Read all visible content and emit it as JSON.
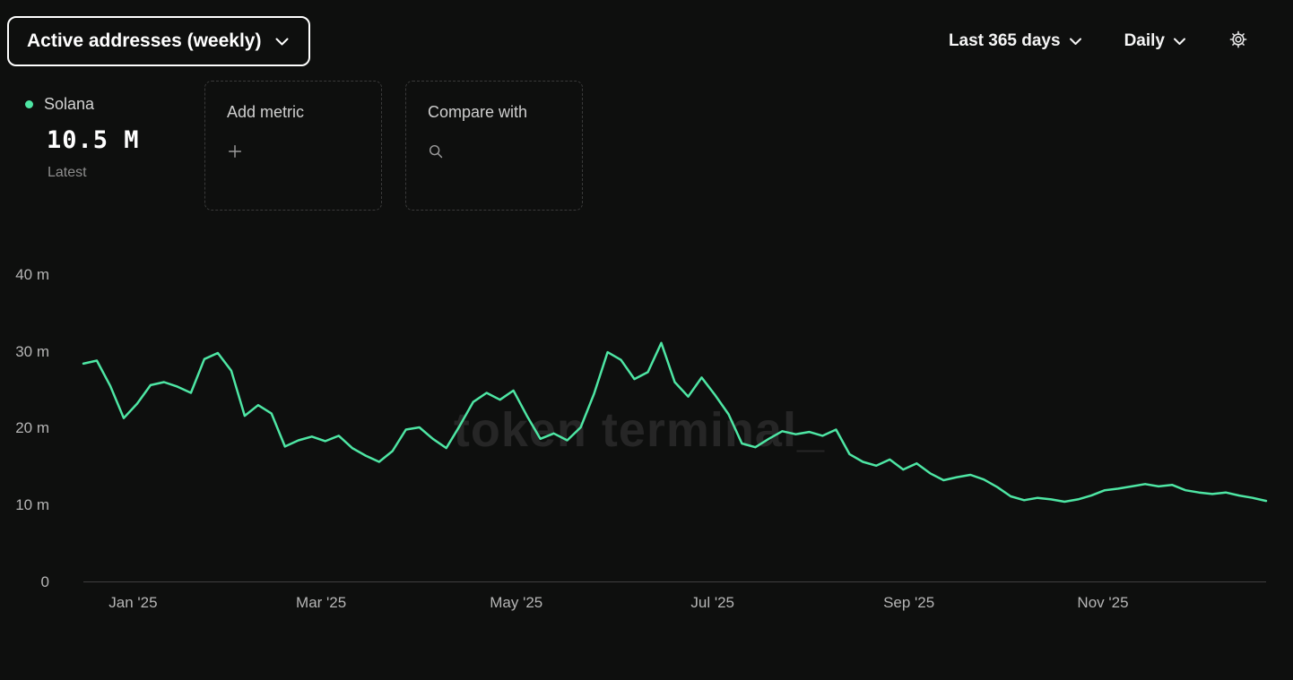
{
  "header": {
    "metric_dropdown": "Active addresses (weekly)",
    "date_range_dropdown": "Last 365 days",
    "granularity_dropdown": "Daily"
  },
  "legend": {
    "series_name": "Solana",
    "latest_value": "10.5 M",
    "latest_caption": "Latest"
  },
  "cards": {
    "add_metric_label": "Add metric",
    "add_metric_icon": "plus-icon",
    "compare_with_label": "Compare with",
    "compare_with_icon": "search-icon"
  },
  "watermark": "token terminal_",
  "colors": {
    "background": "#0e0f0e",
    "accent_green": "#4ee6a4",
    "axis_text": "#b5b5b5",
    "axis_line": "#3f3f3f"
  },
  "chart_data": {
    "type": "line",
    "title": "Active addresses (weekly)",
    "grid": false,
    "legend_position": "top-left",
    "unit": "millions of addresses",
    "x_tick_labels": [
      "Jan '25",
      "Mar '25",
      "May '25",
      "Jul '25",
      "Sep '25",
      "Nov '25"
    ],
    "x_tick_positions_pct": [
      4.2,
      20.1,
      36.6,
      53.2,
      69.8,
      86.2
    ],
    "y_ticks": [
      0,
      10,
      20,
      30,
      40
    ],
    "y_tick_labels": [
      "0",
      "10 m",
      "20 m",
      "30 m",
      "40 m"
    ],
    "ylim": [
      0,
      43
    ],
    "series": [
      {
        "name": "Solana",
        "color": "#4ee6a4",
        "latest": "10.5 M",
        "values": [
          28.4,
          28.8,
          25.5,
          21.3,
          23.2,
          25.6,
          26.0,
          25.4,
          24.6,
          29.0,
          29.8,
          27.5,
          21.6,
          23.0,
          21.9,
          17.6,
          18.4,
          18.9,
          18.3,
          19.0,
          17.4,
          16.4,
          15.6,
          17.0,
          19.8,
          20.1,
          18.6,
          17.4,
          20.3,
          23.4,
          24.6,
          23.7,
          24.9,
          21.6,
          18.6,
          19.3,
          18.4,
          20.1,
          24.5,
          29.9,
          28.9,
          26.4,
          27.3,
          31.1,
          26.0,
          24.1,
          26.6,
          24.3,
          21.8,
          18.0,
          17.5,
          18.6,
          19.6,
          19.2,
          19.5,
          19.0,
          19.8,
          16.6,
          15.6,
          15.1,
          15.9,
          14.6,
          15.4,
          14.1,
          13.2,
          13.6,
          13.9,
          13.3,
          12.3,
          11.1,
          10.6,
          10.9,
          10.7,
          10.4,
          10.7,
          11.2,
          11.9,
          12.1,
          12.4,
          12.7,
          12.4,
          12.6,
          11.9,
          11.6,
          11.4,
          11.6,
          11.2,
          10.9,
          10.5
        ]
      }
    ]
  }
}
